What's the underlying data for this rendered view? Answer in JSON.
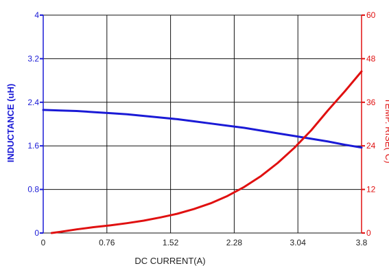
{
  "chart_data": {
    "type": "line",
    "title": "",
    "xlabel": "DC CURRENT(A)",
    "ylabel_left": "INDUCTANCE (uH)",
    "ylabel_right_parts": [
      "TEMP. RISE(",
      "o",
      "C)"
    ],
    "xlim": [
      0,
      3.8
    ],
    "ylim_left": [
      0,
      4
    ],
    "ylim_right": [
      0,
      60
    ],
    "x_ticks": [
      "0",
      "0.76",
      "1.52",
      "2.28",
      "3.04",
      "3.8"
    ],
    "y_left_ticks": [
      "0",
      "0.8",
      "1.6",
      "2.4",
      "3.2",
      "4"
    ],
    "y_right_ticks": [
      "0",
      "12",
      "24",
      "36",
      "48",
      "60"
    ],
    "grid": true,
    "legend": "none",
    "series": [
      {
        "axis": "left",
        "color": "#1a1ad6",
        "x": [
          0,
          0.2,
          0.4,
          0.6,
          0.8,
          1.0,
          1.2,
          1.4,
          1.6,
          1.8,
          2.0,
          2.2,
          2.4,
          2.6,
          2.8,
          3.0,
          3.2,
          3.4,
          3.6,
          3.8
        ],
        "y": [
          2.26,
          2.25,
          2.24,
          2.22,
          2.2,
          2.18,
          2.15,
          2.12,
          2.09,
          2.05,
          2.01,
          1.97,
          1.93,
          1.88,
          1.83,
          1.78,
          1.73,
          1.68,
          1.62,
          1.57
        ]
      },
      {
        "axis": "right",
        "color": "#e01010",
        "x": [
          0.1,
          0.2,
          0.4,
          0.6,
          0.8,
          1.0,
          1.2,
          1.4,
          1.6,
          1.8,
          2.0,
          2.2,
          2.4,
          2.6,
          2.8,
          3.0,
          3.2,
          3.4,
          3.6,
          3.8
        ],
        "y": [
          0,
          0.3,
          1.0,
          1.6,
          2.1,
          2.7,
          3.4,
          4.3,
          5.3,
          6.6,
          8.2,
          10.2,
          12.7,
          15.7,
          19.3,
          23.5,
          28.3,
          33.8,
          39.0,
          44.5
        ]
      }
    ]
  }
}
